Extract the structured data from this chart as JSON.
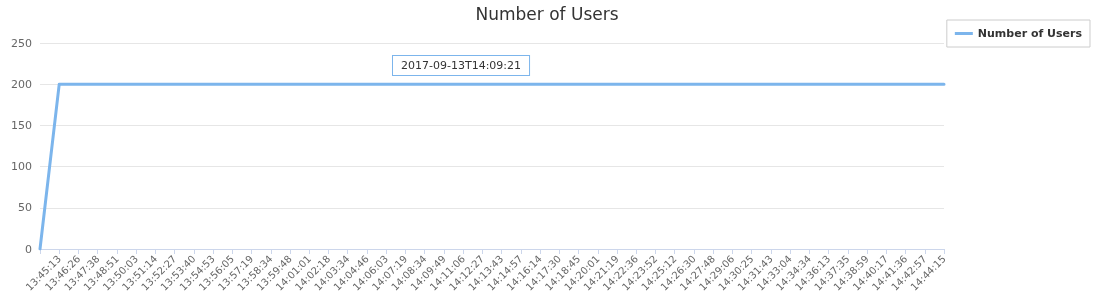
{
  "chart_data": {
    "type": "line",
    "title": "Number of Users",
    "categories": [
      null,
      "13:45:13",
      "13:46:26",
      "13:47:38",
      "13:48:51",
      "13:50:03",
      "13:51:14",
      "13:52:27",
      "13:53:40",
      "13:54:53",
      "13:56:05",
      "13:57:19",
      "13:58:34",
      "13:59:48",
      "14:01:01",
      "14:02:18",
      "14:03:34",
      "14:04:46",
      "14:06:03",
      "14:07:19",
      "14:08:34",
      "14:09:49",
      "14:11:06",
      "14:12:27",
      "14:13:43",
      "14:14:57",
      "14:16:14",
      "14:17:30",
      "14:18:45",
      "14:20:01",
      "14:21:19",
      "14:22:36",
      "14:23:52",
      "14:25:12",
      "14:26:30",
      "14:27:48",
      "14:29:06",
      "14:30:25",
      "14:31:43",
      "14:33:04",
      "14:34:34",
      "14:36:13",
      "14:37:35",
      "14:38:59",
      "14:40:17",
      "14:41:36",
      "14:42:57",
      "14:44:15"
    ],
    "series": [
      {
        "name": "Number of Users",
        "color": "#7cb5ec",
        "values": [
          0,
          200,
          200,
          200,
          200,
          200,
          200,
          200,
          200,
          200,
          200,
          200,
          200,
          200,
          200,
          200,
          200,
          200,
          200,
          200,
          200,
          200,
          200,
          200,
          200,
          200,
          200,
          200,
          200,
          200,
          200,
          200,
          200,
          200,
          200,
          200,
          200,
          200,
          200,
          200,
          200,
          200,
          200,
          200,
          200,
          200,
          200,
          200
        ]
      }
    ],
    "ylim": [
      0,
      250
    ],
    "yticks": [
      0,
      50,
      100,
      150,
      200,
      250
    ],
    "grid": "y",
    "legend": "right",
    "marker": "none",
    "line_style": "solid",
    "annotations": [
      "2017-09-13T14:09:21"
    ]
  }
}
